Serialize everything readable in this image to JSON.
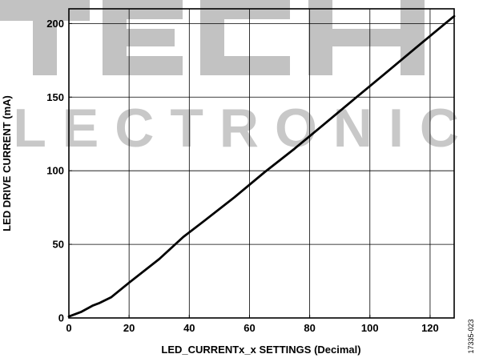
{
  "chart_data": {
    "type": "line",
    "xlabel": "LED_CURRENTx_x SETTINGS (Decimal)",
    "ylabel": "LED DRIVE CURRENT (mA)",
    "xlim": [
      0,
      128
    ],
    "ylim": [
      0,
      210
    ],
    "xticks": [
      0,
      20,
      40,
      60,
      80,
      100,
      120
    ],
    "yticks": [
      0,
      50,
      100,
      150,
      200
    ],
    "xtick_labels": [
      "0",
      "20",
      "40",
      "60",
      "80",
      "100",
      "120"
    ],
    "ytick_labels": [
      "0",
      "50",
      "100",
      "150",
      "200"
    ],
    "grid": true,
    "series": [
      {
        "color": "#000000",
        "x": [
          0,
          4,
          8,
          10,
          14,
          20,
          30,
          38,
          45,
          55,
          65,
          75,
          85,
          95,
          105,
          115,
          125,
          128
        ],
        "y": [
          1,
          4,
          8.5,
          10,
          14,
          24,
          40,
          55,
          66,
          82,
          99,
          115,
          132,
          149,
          166,
          183,
          200,
          205
        ]
      }
    ]
  },
  "figure_id": "17335-023",
  "watermark": {
    "line1": "TECH",
    "line2": "ELECTRONIC"
  }
}
